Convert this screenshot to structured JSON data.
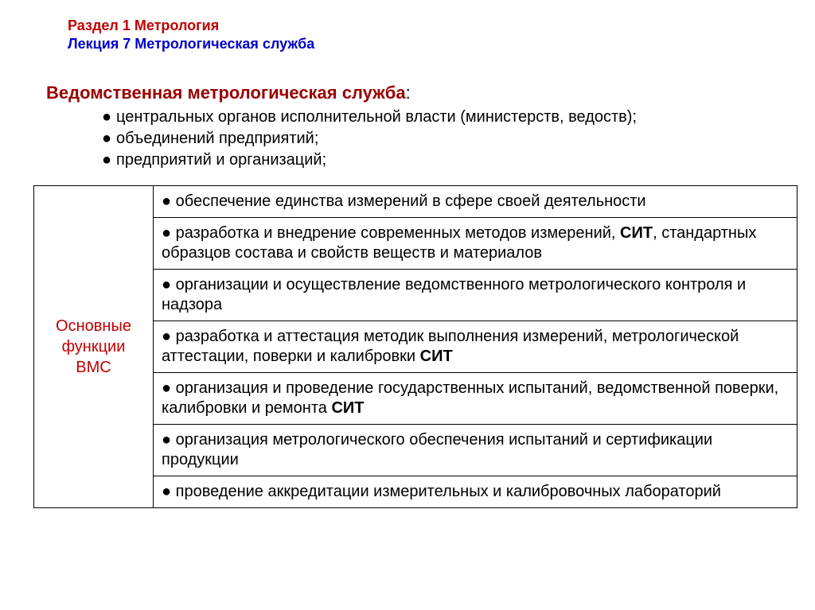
{
  "colors": {
    "section_title": "#c00000",
    "lecture_title": "#0000cc",
    "subheading": "#990000",
    "row_label": "#c00000",
    "text": "#000000",
    "border": "#000000",
    "background": "#ffffff"
  },
  "typography": {
    "header_fontsize": 18,
    "subheading_fontsize": 22,
    "body_fontsize": 20,
    "font_family": "Arial"
  },
  "header": {
    "section": "Раздел 1  Метрология",
    "lecture": "Лекция 7  Метрологическая служба"
  },
  "subheading": {
    "text": "Ведомственная метрологическая служба",
    "suffix": ":"
  },
  "bullets": [
    "центральных органов исполнительной власти (министерств, ведоств);",
    "объединений предприятий;",
    "предприятий и организаций;"
  ],
  "table": {
    "row_label_lines": [
      "Основные",
      "функции",
      "ВМС"
    ],
    "rows": [
      "обеспечение единства измерений в сфере своей деятельности",
      "разработка и внедрение современных методов измерений, СИТ, стандартных образцов состава и свойств веществ и материалов",
      "организации и осуществление ведомственного метрологического контроля и надзора",
      "разработка и аттестация методик выполнения измерений, метрологической аттестации, поверки и калибровки СИТ",
      "организация и проведение государственных испытаний, ведомственной поверки, калибровки и ремонта СИТ",
      "организация метрологического обеспечения испытаний и сертификации продукции",
      "проведение аккредитации измерительных и калибровочных лабораторий"
    ],
    "bold_terms": [
      "СИТ"
    ],
    "border_width": 1.5,
    "label_col_width": 150,
    "total_width": 960
  }
}
